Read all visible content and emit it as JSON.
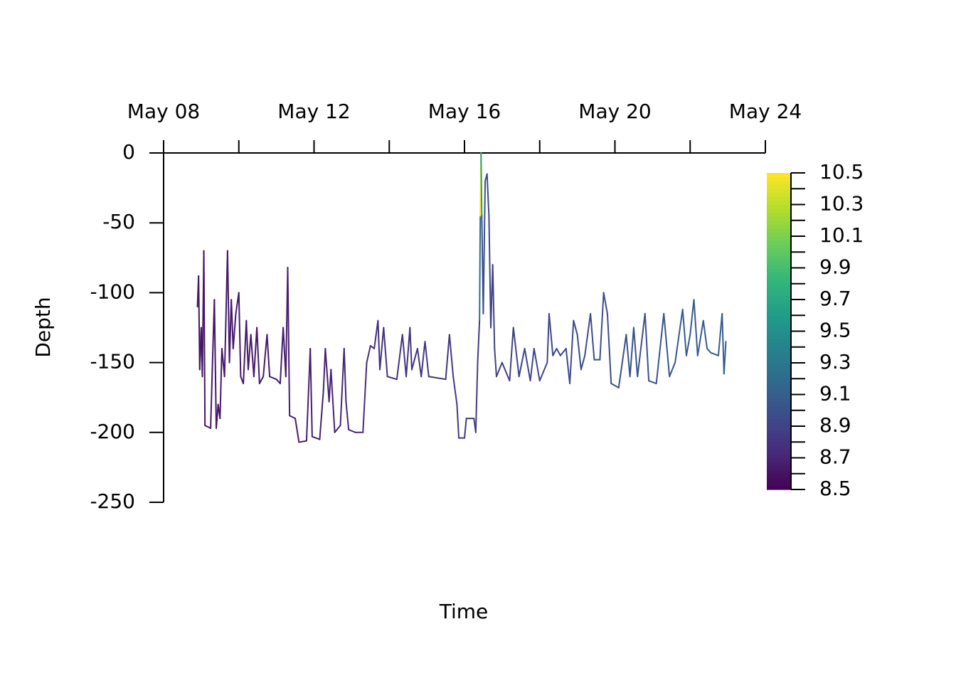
{
  "chart_data": {
    "type": "line",
    "x_label": "Time",
    "y_label": "Depth",
    "xlim": [
      8,
      24
    ],
    "xticks": [
      {
        "value": 8,
        "label": "May 08"
      },
      {
        "value": 12,
        "label": "May 12"
      },
      {
        "value": 16,
        "label": "May 16"
      },
      {
        "value": 20,
        "label": "May 20"
      },
      {
        "value": 24,
        "label": "May 24"
      }
    ],
    "ylim": [
      -250,
      0
    ],
    "yticks": [
      0,
      -50,
      -100,
      -150,
      -200,
      -250
    ],
    "colormap": "viridis",
    "colorbar_lim": [
      8.5,
      10.5
    ],
    "colorbar_ticks": [
      8.5,
      8.7,
      8.9,
      9.1,
      9.3,
      9.5,
      9.7,
      9.9,
      10.1,
      10.3,
      10.5
    ],
    "series": [
      {
        "x": [
          8.9,
          8.93,
          8.96,
          9.0,
          9.03,
          9.07,
          9.1,
          9.25,
          9.3,
          9.35,
          9.4,
          9.45,
          9.5,
          9.55,
          9.62,
          9.7,
          9.75,
          9.8,
          9.85,
          9.92,
          10.0,
          10.05,
          10.12,
          10.2,
          10.25,
          10.32,
          10.4,
          10.48,
          10.55,
          10.65,
          10.75,
          10.82,
          11.0,
          11.1,
          11.18,
          11.25,
          11.3,
          11.35,
          11.5,
          11.6,
          11.8,
          11.9,
          11.95,
          12.15,
          12.25,
          12.3,
          12.4,
          12.45,
          12.55,
          12.7,
          12.8,
          12.85,
          12.92,
          13.1,
          13.3,
          13.4,
          13.5,
          13.6,
          13.7,
          13.75,
          13.85,
          13.95,
          14.2,
          14.35,
          14.45,
          14.55,
          14.6,
          14.75,
          14.85,
          14.95,
          15.05,
          15.5,
          15.6,
          15.7,
          15.8,
          15.85,
          16.0,
          16.05,
          16.25,
          16.3,
          16.35,
          16.4,
          16.42,
          16.44,
          16.46,
          16.5,
          16.55,
          16.6,
          16.65,
          16.7,
          16.75,
          16.8,
          16.85,
          17.0,
          17.2,
          17.3,
          17.45,
          17.6,
          17.75,
          17.85,
          18.0,
          18.2,
          18.25,
          18.35,
          18.45,
          18.55,
          18.7,
          18.8,
          18.9,
          19.0,
          19.1,
          19.2,
          19.35,
          19.45,
          19.6,
          19.7,
          19.8,
          19.9,
          20.1,
          20.3,
          20.4,
          20.5,
          20.6,
          20.8,
          20.9,
          21.1,
          21.3,
          21.45,
          21.6,
          21.8,
          21.9,
          22.0,
          22.1,
          22.2,
          22.35,
          22.45,
          22.55,
          22.75,
          22.85,
          22.9,
          22.95
        ],
        "values": [
          -110,
          -88,
          -155,
          -125,
          -160,
          -70,
          -195,
          -197,
          -150,
          -105,
          -197,
          -180,
          -190,
          -140,
          -160,
          -70,
          -150,
          -105,
          -140,
          -115,
          -100,
          -160,
          -165,
          -120,
          -155,
          -130,
          -160,
          -125,
          -165,
          -160,
          -130,
          -160,
          -162,
          -165,
          -125,
          -160,
          -82,
          -188,
          -190,
          -207,
          -206,
          -140,
          -203,
          -205,
          -170,
          -140,
          -178,
          -155,
          -200,
          -195,
          -140,
          -178,
          -198,
          -200,
          -200,
          -150,
          -138,
          -140,
          -120,
          -155,
          -125,
          -160,
          -162,
          -130,
          -160,
          -125,
          -155,
          -140,
          -160,
          -135,
          -160,
          -162,
          -130,
          -160,
          -180,
          -204,
          -204,
          -190,
          -190,
          -200,
          -150,
          -120,
          -45,
          0,
          -45,
          -115,
          -20,
          -15,
          -45,
          -125,
          -80,
          -140,
          -160,
          -150,
          -163,
          -125,
          -160,
          -140,
          -163,
          -140,
          -163,
          -150,
          -115,
          -145,
          -140,
          -145,
          -140,
          -165,
          -120,
          -130,
          -155,
          -145,
          -115,
          -148,
          -148,
          -100,
          -115,
          -165,
          -168,
          -130,
          -160,
          -125,
          -160,
          -115,
          -163,
          -165,
          -115,
          -160,
          -150,
          -112,
          -145,
          -130,
          -105,
          -145,
          -120,
          -140,
          -143,
          -145,
          -115,
          -158,
          -135
        ],
        "temperature": [
          8.62,
          8.62,
          8.62,
          8.62,
          8.62,
          8.62,
          8.62,
          8.62,
          8.62,
          8.62,
          8.62,
          8.62,
          8.62,
          8.63,
          8.63,
          8.63,
          8.63,
          8.63,
          8.63,
          8.63,
          8.63,
          8.63,
          8.63,
          8.63,
          8.63,
          8.64,
          8.64,
          8.64,
          8.64,
          8.64,
          8.65,
          8.65,
          8.65,
          8.65,
          8.65,
          8.66,
          8.66,
          8.66,
          8.66,
          8.66,
          8.67,
          8.67,
          8.67,
          8.68,
          8.68,
          8.69,
          8.69,
          8.7,
          8.7,
          8.7,
          8.71,
          8.71,
          8.71,
          8.72,
          8.72,
          8.75,
          8.76,
          8.77,
          8.78,
          8.78,
          8.79,
          8.79,
          8.8,
          8.8,
          8.81,
          8.81,
          8.81,
          8.82,
          8.82,
          8.82,
          8.83,
          8.83,
          8.84,
          8.84,
          8.84,
          8.84,
          8.84,
          8.85,
          8.85,
          8.85,
          8.86,
          8.86,
          9.2,
          10.5,
          9.6,
          8.95,
          9.0,
          9.0,
          8.95,
          8.9,
          8.9,
          8.9,
          8.9,
          8.9,
          8.9,
          8.9,
          8.91,
          8.91,
          8.92,
          8.92,
          8.92,
          8.93,
          8.93,
          8.93,
          8.94,
          8.94,
          8.94,
          8.95,
          8.95,
          8.95,
          8.95,
          8.96,
          8.96,
          8.97,
          8.97,
          8.98,
          8.98,
          8.98,
          8.99,
          8.99,
          9.0,
          9.0,
          9.0,
          9.01,
          9.01,
          9.02,
          9.03,
          9.03,
          9.04,
          9.05,
          9.05,
          9.06,
          9.06,
          9.07,
          9.07,
          9.07,
          9.08,
          9.08,
          9.09,
          9.09,
          9.09
        ]
      }
    ]
  }
}
